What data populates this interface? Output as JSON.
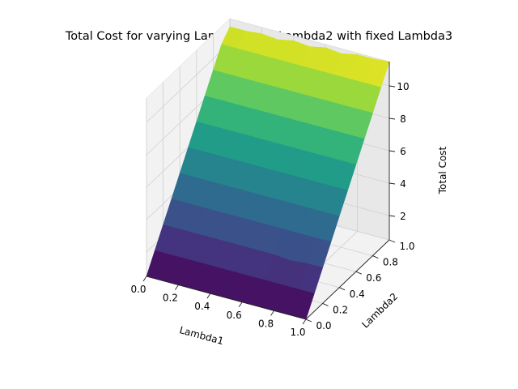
{
  "chart_data": {
    "type": "surface3d",
    "title": "Total Cost for varying Lambda1 and Lambda2 with fixed Lambda3",
    "xlabel": "Lambda1",
    "ylabel": "Lambda2",
    "zlabel": "Total Cost",
    "x_ticks": [
      "0.0",
      "0.2",
      "0.4",
      "0.6",
      "0.8",
      "1.0"
    ],
    "y_ticks": [
      "0.0",
      "0.2",
      "0.4",
      "0.6",
      "0.8",
      "1.0"
    ],
    "z_ticks": [
      "2",
      "4",
      "6",
      "8",
      "10"
    ],
    "xlim": [
      0,
      1
    ],
    "ylim": [
      0,
      1
    ],
    "zlim": [
      0.5,
      11.5
    ],
    "colormap": "viridis",
    "grid": true,
    "x": [
      0.0,
      0.1,
      0.2,
      0.3,
      0.4,
      0.5,
      0.6,
      0.7,
      0.8,
      0.9,
      1.0
    ],
    "y": [
      0.0,
      0.1,
      0.2,
      0.3,
      0.4,
      0.5,
      0.6,
      0.7,
      0.8,
      0.9,
      1.0
    ],
    "z": [
      [
        0.5,
        0.5,
        0.5,
        0.5,
        0.5,
        0.5,
        0.5,
        0.5,
        0.5,
        0.5,
        0.5
      ],
      [
        1.6,
        1.6,
        1.6,
        1.6,
        1.6,
        1.6,
        1.6,
        1.6,
        1.6,
        1.6,
        1.6
      ],
      [
        2.7,
        2.7,
        2.7,
        2.7,
        2.7,
        2.7,
        2.7,
        2.7,
        2.6,
        2.7,
        2.7
      ],
      [
        3.8,
        3.8,
        3.8,
        3.8,
        3.8,
        3.8,
        3.8,
        3.8,
        3.8,
        3.8,
        3.8
      ],
      [
        4.9,
        4.9,
        4.9,
        4.9,
        4.9,
        4.9,
        4.9,
        4.9,
        4.9,
        4.9,
        4.9
      ],
      [
        6.0,
        6.0,
        6.0,
        6.0,
        6.0,
        6.0,
        6.0,
        6.0,
        6.0,
        6.0,
        6.0
      ],
      [
        7.1,
        7.1,
        7.1,
        7.1,
        7.1,
        7.1,
        7.1,
        7.1,
        7.1,
        7.1,
        7.1
      ],
      [
        8.2,
        8.2,
        8.2,
        8.2,
        8.2,
        8.2,
        8.2,
        8.2,
        8.2,
        8.2,
        8.2
      ],
      [
        9.3,
        9.3,
        9.3,
        9.3,
        9.3,
        9.3,
        9.3,
        9.3,
        9.3,
        9.3,
        9.3
      ],
      [
        10.4,
        10.4,
        10.4,
        10.4,
        10.4,
        10.4,
        10.4,
        10.4,
        10.4,
        10.4,
        10.4
      ],
      [
        11.0,
        11.0,
        11.1,
        11.0,
        11.2,
        11.1,
        11.3,
        11.2,
        11.4,
        11.4,
        11.5
      ]
    ]
  }
}
